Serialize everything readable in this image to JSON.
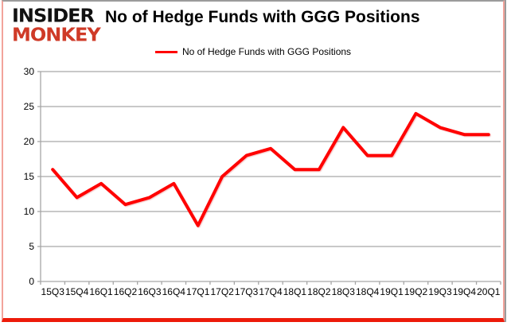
{
  "brand": {
    "line1": "INSIDER",
    "line2": "MONKEY"
  },
  "header": {
    "title": "No of Hedge Funds with GGG Positions"
  },
  "legend": {
    "label": "No of Hedge Funds with GGG Positions"
  },
  "colors": {
    "line": "#ff0000",
    "grid": "#a6a6a6",
    "text": "#000000",
    "brand_black": "#111111",
    "brand_red": "#cf3a27",
    "border_top_gray": "#9b9b9b",
    "border_side_pink": "#f2a39b",
    "border_bottom_red": "#ed1b0a"
  },
  "chart_data": {
    "type": "line",
    "title": "No of Hedge Funds with GGG Positions",
    "categories": [
      "15Q3",
      "15Q4",
      "16Q1",
      "16Q2",
      "16Q3",
      "16Q4",
      "17Q1",
      "17Q2",
      "17Q3",
      "17Q4",
      "18Q1",
      "18Q2",
      "18Q3",
      "18Q4",
      "19Q1",
      "19Q2",
      "19Q3",
      "19Q4",
      "20Q1"
    ],
    "series": [
      {
        "name": "No of Hedge Funds with GGG Positions",
        "color": "#ff0000",
        "values": [
          16,
          12,
          14,
          11,
          12,
          14,
          8,
          15,
          18,
          19,
          16,
          16,
          22,
          18,
          18,
          24,
          22,
          21,
          21
        ]
      }
    ],
    "xlabel": "",
    "ylabel": "",
    "ylim": [
      0,
      30
    ],
    "yticks": [
      0,
      5,
      10,
      15,
      20,
      25,
      30
    ],
    "grid": true,
    "legend_position": "top-center"
  }
}
